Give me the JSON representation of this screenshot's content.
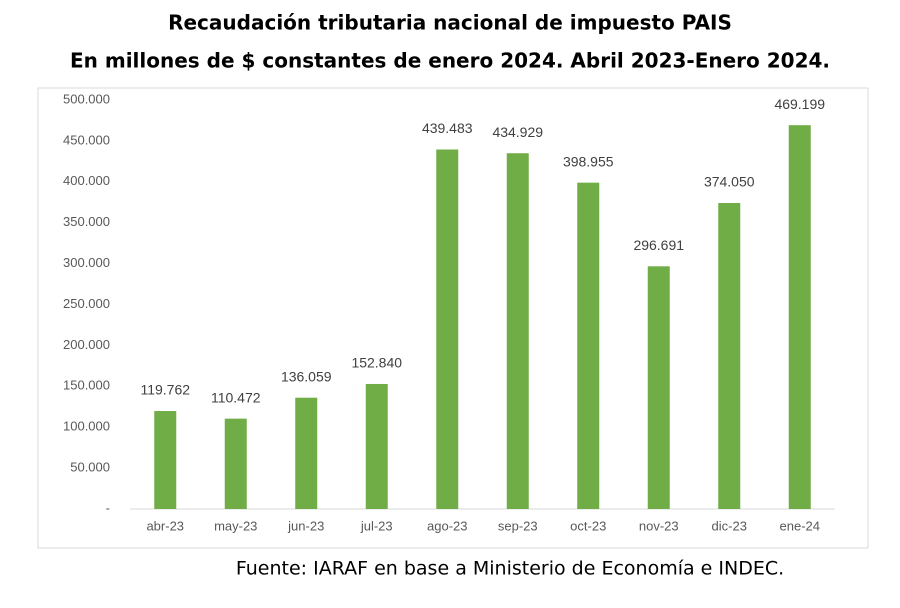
{
  "chart_data": {
    "type": "bar",
    "title": "Recaudación tributaria nacional de impuesto PAIS",
    "subtitle": "En millones de $ constantes de enero 2024. Abril 2023-Enero 2024.",
    "categories": [
      "abr-23",
      "may-23",
      "jun-23",
      "jul-23",
      "ago-23",
      "sep-23",
      "oct-23",
      "nov-23",
      "dic-23",
      "ene-24"
    ],
    "values": [
      119762,
      110472,
      136059,
      152840,
      439483,
      434929,
      398955,
      296691,
      374050,
      469199
    ],
    "value_labels": [
      "119.762",
      "110.472",
      "136.059",
      "152.840",
      "439.483",
      "434.929",
      "398.955",
      "296.691",
      "374.050",
      "469.199"
    ],
    "color": "#70ad47",
    "ylim": [
      0,
      500000
    ],
    "yticks": [
      {
        "value": 0,
        "label": "-"
      },
      {
        "value": 50000,
        "label": "50.000"
      },
      {
        "value": 100000,
        "label": "100.000"
      },
      {
        "value": 150000,
        "label": "150.000"
      },
      {
        "value": 200000,
        "label": "200.000"
      },
      {
        "value": 250000,
        "label": "250.000"
      },
      {
        "value": 300000,
        "label": "300.000"
      },
      {
        "value": 350000,
        "label": "350.000"
      },
      {
        "value": 400000,
        "label": "400.000"
      },
      {
        "value": 450000,
        "label": "450.000"
      },
      {
        "value": 500000,
        "label": "500.000"
      }
    ],
    "grid": false,
    "source": "Fuente: IARAF en base a Ministerio de Economía e INDEC."
  }
}
